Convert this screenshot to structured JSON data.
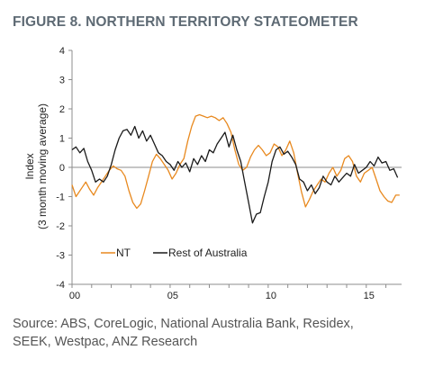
{
  "figure": {
    "title": "FIGURE 8. NORTHERN TERRITORY STATEOMETER",
    "source_line1": "Source: ABS, CoreLogic, National Australia Bank, Residex,",
    "source_line2": "SEEK, Westpac, ANZ Research"
  },
  "colors": {
    "nt": "#e8891f",
    "rest": "#1a1a1a",
    "axis": "#8c8c8c"
  },
  "chart_data": {
    "type": "line",
    "title": "FIGURE 8. NORTHERN TERRITORY STATEOMETER",
    "ylabel_line1": "Index",
    "ylabel_line2": "(3 month moving average)",
    "xlabel": "",
    "x_ticks": [
      {
        "value": 2000,
        "label": "00"
      },
      {
        "value": 2005,
        "label": "05"
      },
      {
        "value": 2010,
        "label": "10"
      },
      {
        "value": 2015,
        "label": "15"
      }
    ],
    "y_ticks": [
      4,
      3,
      2,
      1,
      0,
      -1,
      -2,
      -3,
      -4
    ],
    "xlim": [
      2000,
      2016.8
    ],
    "ylim": [
      -4,
      4
    ],
    "legend_position": "bottom-left",
    "series": [
      {
        "name": "NT",
        "points": [
          [
            2000.0,
            -0.6
          ],
          [
            2000.2,
            -1.0
          ],
          [
            2000.5,
            -0.7
          ],
          [
            2000.7,
            -0.5
          ],
          [
            2000.9,
            -0.75
          ],
          [
            2001.1,
            -0.95
          ],
          [
            2001.3,
            -0.7
          ],
          [
            2001.5,
            -0.5
          ],
          [
            2001.7,
            -0.3
          ],
          [
            2001.9,
            -0.1
          ],
          [
            2002.1,
            0.05
          ],
          [
            2002.3,
            -0.05
          ],
          [
            2002.5,
            -0.1
          ],
          [
            2002.7,
            -0.3
          ],
          [
            2002.9,
            -0.8
          ],
          [
            2003.1,
            -1.2
          ],
          [
            2003.3,
            -1.4
          ],
          [
            2003.5,
            -1.25
          ],
          [
            2003.7,
            -0.8
          ],
          [
            2003.9,
            -0.3
          ],
          [
            2004.1,
            0.2
          ],
          [
            2004.3,
            0.45
          ],
          [
            2004.5,
            0.3
          ],
          [
            2004.7,
            0.1
          ],
          [
            2004.9,
            -0.1
          ],
          [
            2005.1,
            -0.4
          ],
          [
            2005.3,
            -0.2
          ],
          [
            2005.5,
            0.1
          ],
          [
            2005.7,
            0.3
          ],
          [
            2005.9,
            0.9
          ],
          [
            2006.1,
            1.4
          ],
          [
            2006.3,
            1.75
          ],
          [
            2006.5,
            1.8
          ],
          [
            2006.7,
            1.75
          ],
          [
            2006.9,
            1.7
          ],
          [
            2007.1,
            1.75
          ],
          [
            2007.3,
            1.7
          ],
          [
            2007.5,
            1.6
          ],
          [
            2007.7,
            1.7
          ],
          [
            2007.9,
            1.5
          ],
          [
            2008.1,
            1.2
          ],
          [
            2008.3,
            0.6
          ],
          [
            2008.5,
            0.1
          ],
          [
            2008.7,
            -0.1
          ],
          [
            2008.9,
            0.0
          ],
          [
            2009.1,
            0.35
          ],
          [
            2009.3,
            0.6
          ],
          [
            2009.5,
            0.75
          ],
          [
            2009.7,
            0.6
          ],
          [
            2009.9,
            0.4
          ],
          [
            2010.1,
            0.5
          ],
          [
            2010.3,
            0.8
          ],
          [
            2010.5,
            0.7
          ],
          [
            2010.7,
            0.4
          ],
          [
            2010.9,
            0.6
          ],
          [
            2011.1,
            0.9
          ],
          [
            2011.3,
            0.5
          ],
          [
            2011.5,
            -0.2
          ],
          [
            2011.7,
            -0.85
          ],
          [
            2011.9,
            -1.35
          ],
          [
            2012.1,
            -1.1
          ],
          [
            2012.3,
            -0.8
          ],
          [
            2012.5,
            -0.6
          ],
          [
            2012.7,
            -0.4
          ],
          [
            2012.9,
            -0.5
          ],
          [
            2013.1,
            -0.2
          ],
          [
            2013.3,
            0.0
          ],
          [
            2013.5,
            -0.3
          ],
          [
            2013.7,
            -0.1
          ],
          [
            2013.9,
            0.3
          ],
          [
            2014.1,
            0.4
          ],
          [
            2014.3,
            0.2
          ],
          [
            2014.5,
            -0.3
          ],
          [
            2014.7,
            -0.5
          ],
          [
            2014.9,
            -0.2
          ],
          [
            2015.1,
            -0.1
          ],
          [
            2015.3,
            0.0
          ],
          [
            2015.5,
            -0.4
          ],
          [
            2015.7,
            -0.8
          ],
          [
            2015.9,
            -1.0
          ],
          [
            2016.1,
            -1.15
          ],
          [
            2016.3,
            -1.2
          ],
          [
            2016.5,
            -0.95
          ],
          [
            2016.7,
            -0.95
          ]
        ]
      },
      {
        "name": "Rest of Australia",
        "points": [
          [
            2000.0,
            0.6
          ],
          [
            2000.2,
            0.7
          ],
          [
            2000.4,
            0.5
          ],
          [
            2000.6,
            0.65
          ],
          [
            2000.8,
            0.2
          ],
          [
            2001.0,
            -0.1
          ],
          [
            2001.2,
            -0.5
          ],
          [
            2001.4,
            -0.4
          ],
          [
            2001.6,
            -0.5
          ],
          [
            2001.8,
            -0.3
          ],
          [
            2002.0,
            0.1
          ],
          [
            2002.2,
            0.6
          ],
          [
            2002.4,
            1.0
          ],
          [
            2002.6,
            1.25
          ],
          [
            2002.8,
            1.3
          ],
          [
            2003.0,
            1.1
          ],
          [
            2003.2,
            1.4
          ],
          [
            2003.4,
            1.0
          ],
          [
            2003.6,
            1.25
          ],
          [
            2003.8,
            0.9
          ],
          [
            2004.0,
            1.1
          ],
          [
            2004.2,
            0.8
          ],
          [
            2004.4,
            0.5
          ],
          [
            2004.6,
            0.4
          ],
          [
            2004.8,
            0.2
          ],
          [
            2005.0,
            0.1
          ],
          [
            2005.2,
            -0.1
          ],
          [
            2005.4,
            0.2
          ],
          [
            2005.6,
            0.0
          ],
          [
            2005.8,
            0.15
          ],
          [
            2006.0,
            -0.15
          ],
          [
            2006.2,
            0.3
          ],
          [
            2006.4,
            0.1
          ],
          [
            2006.6,
            0.4
          ],
          [
            2006.8,
            0.2
          ],
          [
            2007.0,
            0.6
          ],
          [
            2007.2,
            0.5
          ],
          [
            2007.4,
            0.8
          ],
          [
            2007.6,
            1.0
          ],
          [
            2007.8,
            1.2
          ],
          [
            2008.0,
            0.7
          ],
          [
            2008.2,
            1.1
          ],
          [
            2008.4,
            0.6
          ],
          [
            2008.6,
            0.2
          ],
          [
            2008.8,
            -0.5
          ],
          [
            2009.0,
            -1.2
          ],
          [
            2009.2,
            -1.9
          ],
          [
            2009.4,
            -1.6
          ],
          [
            2009.6,
            -1.55
          ],
          [
            2009.8,
            -1.0
          ],
          [
            2010.0,
            -0.5
          ],
          [
            2010.2,
            0.2
          ],
          [
            2010.4,
            0.6
          ],
          [
            2010.6,
            0.7
          ],
          [
            2010.8,
            0.45
          ],
          [
            2011.0,
            0.55
          ],
          [
            2011.2,
            0.35
          ],
          [
            2011.4,
            0.1
          ],
          [
            2011.6,
            -0.4
          ],
          [
            2011.8,
            -0.5
          ],
          [
            2012.0,
            -0.8
          ],
          [
            2012.2,
            -0.6
          ],
          [
            2012.4,
            -0.9
          ],
          [
            2012.6,
            -0.7
          ],
          [
            2012.8,
            -0.3
          ],
          [
            2013.0,
            -0.5
          ],
          [
            2013.2,
            -0.6
          ],
          [
            2013.4,
            -0.3
          ],
          [
            2013.6,
            -0.5
          ],
          [
            2013.8,
            -0.35
          ],
          [
            2014.0,
            -0.2
          ],
          [
            2014.2,
            -0.3
          ],
          [
            2014.4,
            0.1
          ],
          [
            2014.6,
            -0.2
          ],
          [
            2014.8,
            -0.1
          ],
          [
            2015.0,
            0.0
          ],
          [
            2015.2,
            0.2
          ],
          [
            2015.4,
            0.05
          ],
          [
            2015.6,
            0.35
          ],
          [
            2015.8,
            0.15
          ],
          [
            2016.0,
            0.2
          ],
          [
            2016.2,
            -0.1
          ],
          [
            2016.4,
            -0.05
          ],
          [
            2016.6,
            -0.35
          ]
        ]
      }
    ]
  }
}
